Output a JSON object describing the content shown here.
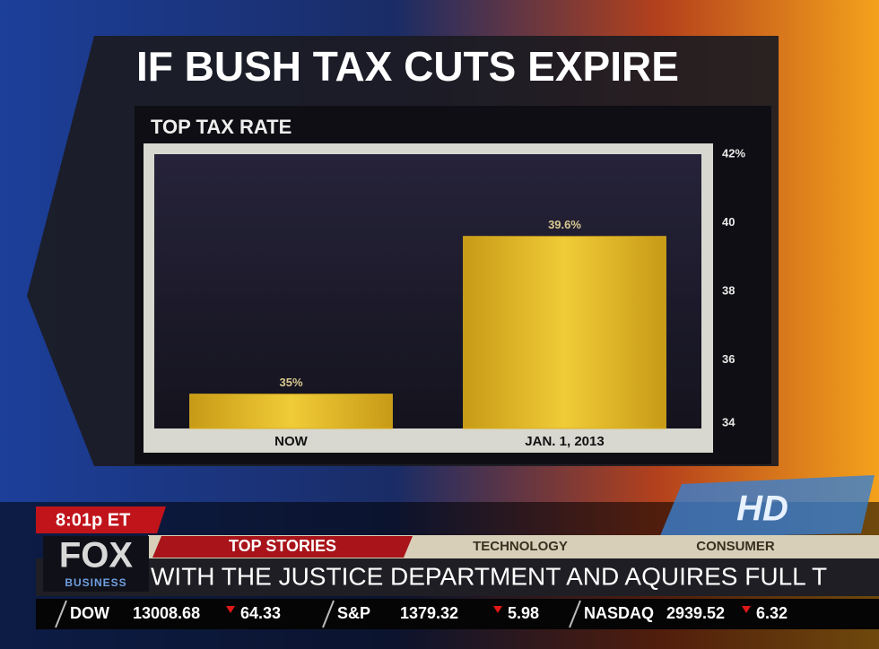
{
  "chart_data": {
    "type": "bar",
    "title": "IF BUSH TAX CUTS EXPIRE",
    "subtitle": "TOP TAX RATE",
    "categories": [
      "NOW",
      "JAN. 1, 2013"
    ],
    "values": [
      35,
      39.6
    ],
    "value_labels": [
      "35%",
      "39.6%"
    ],
    "color": "#d9b020",
    "ylim": [
      34,
      42
    ],
    "yticks": [
      34,
      36,
      38,
      40,
      {
        "value": 42,
        "label": "42%"
      }
    ]
  },
  "broadcast": {
    "time": "8:01p ET",
    "logo": "FOX",
    "logo_sub": "BUSINESS",
    "hd": "HD",
    "tabs": [
      "TOP STORIES",
      "TECHNOLOGY",
      "CONSUMER"
    ],
    "crawl": "WITH THE JUSTICE DEPARTMENT AND AQUIRES FULL T",
    "ticker": [
      {
        "name": "DOW",
        "price": "13008.68",
        "change": "64.33"
      },
      {
        "name": "S&P",
        "price": "1379.32",
        "change": "5.98"
      },
      {
        "name": "NASDAQ",
        "price": "2939.52",
        "change": "6.32"
      }
    ]
  }
}
